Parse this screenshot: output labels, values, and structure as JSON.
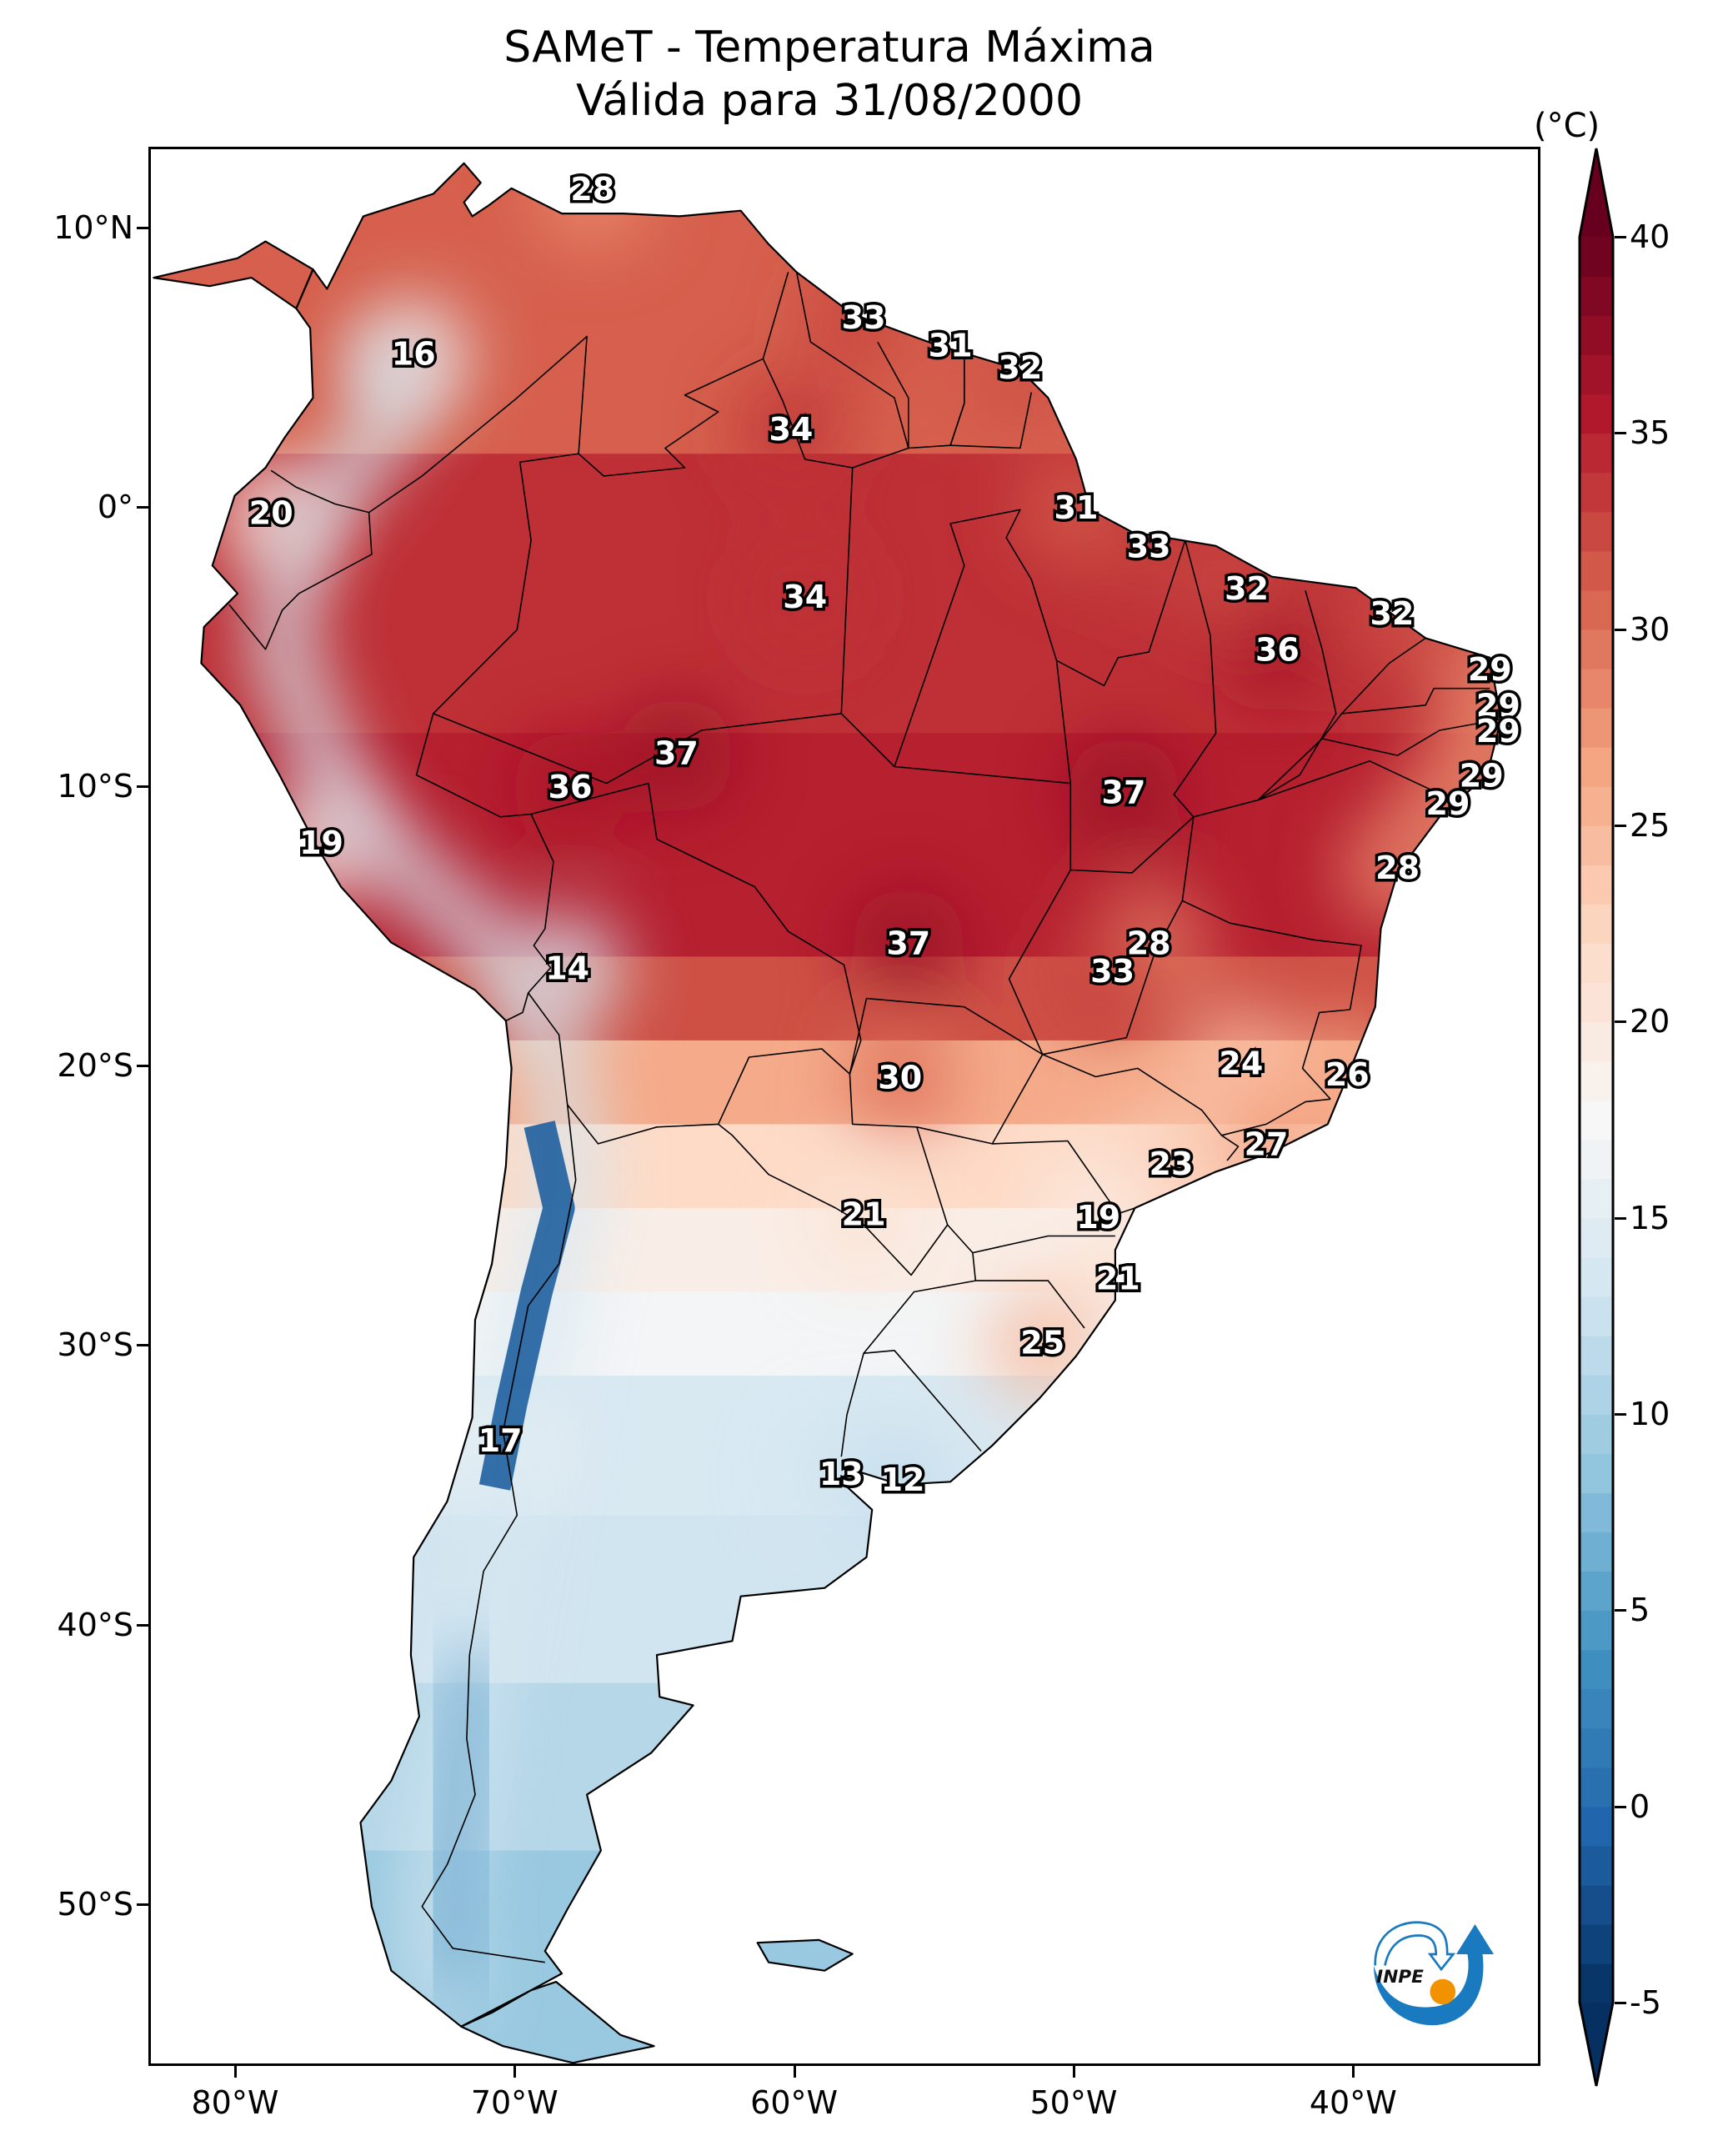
{
  "title_line1": "SAMeT - Temperatura Máxima",
  "title_line2": "Válida para 31/08/2000",
  "chart_data": {
    "type": "heatmap",
    "title": "SAMeT - Temperatura Máxima\nVálida para 31/08/2000",
    "variable": "Temperatura Máxima",
    "valid_date": "31/08/2000",
    "extent": {
      "lon": [
        -83.1,
        -33.3
      ],
      "lat": [
        -55.8,
        12.9
      ]
    },
    "x_ticks": [
      {
        "value": -80,
        "label": "80°W"
      },
      {
        "value": -70,
        "label": "70°W"
      },
      {
        "value": -60,
        "label": "60°W"
      },
      {
        "value": -50,
        "label": "50°W"
      },
      {
        "value": -40,
        "label": "40°W"
      }
    ],
    "y_ticks": [
      {
        "value": 10,
        "label": "10°N"
      },
      {
        "value": 0,
        "label": "0°"
      },
      {
        "value": -10,
        "label": "10°S"
      },
      {
        "value": -20,
        "label": "20°S"
      },
      {
        "value": -30,
        "label": "30°S"
      },
      {
        "value": -40,
        "label": "40°S"
      },
      {
        "value": -50,
        "label": "50°S"
      }
    ],
    "colorbar": {
      "unit": "(°C)",
      "cmap": "RdBu_r",
      "range": [
        -5,
        40
      ],
      "extend": "both",
      "ticks": [
        40,
        35,
        30,
        25,
        20,
        15,
        10,
        5,
        0,
        -5
      ],
      "tick_labels": [
        "40",
        "35",
        "30",
        "25",
        "20",
        "15",
        "10",
        "5",
        "0",
        "-5"
      ],
      "colors": [
        "#053061",
        "#2166ac",
        "#4393c3",
        "#92c5de",
        "#d1e5f0",
        "#f7f7f7",
        "#fddbc7",
        "#f4a582",
        "#d6604d",
        "#b2182b",
        "#67001f"
      ]
    },
    "station_values": [
      {
        "lon": -67.3,
        "lat": 11.4,
        "value": 28
      },
      {
        "lon": -73.7,
        "lat": 5.5,
        "value": 16
      },
      {
        "lon": -78.8,
        "lat": -0.2,
        "value": 20
      },
      {
        "lon": -57.6,
        "lat": 6.8,
        "value": 33
      },
      {
        "lon": -54.5,
        "lat": 5.8,
        "value": 31
      },
      {
        "lon": -52.0,
        "lat": 5.0,
        "value": 32
      },
      {
        "lon": -60.2,
        "lat": 2.8,
        "value": 34
      },
      {
        "lon": -50.0,
        "lat": 0.0,
        "value": 31
      },
      {
        "lon": -47.4,
        "lat": -1.4,
        "value": 33
      },
      {
        "lon": -43.9,
        "lat": -2.9,
        "value": 32
      },
      {
        "lon": -38.7,
        "lat": -3.8,
        "value": 32
      },
      {
        "lon": -59.7,
        "lat": -3.2,
        "value": 34
      },
      {
        "lon": -42.8,
        "lat": -5.1,
        "value": 36
      },
      {
        "lon": -35.2,
        "lat": -5.8,
        "value": 29
      },
      {
        "lon": -34.9,
        "lat": -7.1,
        "value": 29
      },
      {
        "lon": -34.9,
        "lat": -8.0,
        "value": 29
      },
      {
        "lon": -35.5,
        "lat": -9.6,
        "value": 29
      },
      {
        "lon": -36.7,
        "lat": -10.6,
        "value": 29
      },
      {
        "lon": -64.3,
        "lat": -8.8,
        "value": 37
      },
      {
        "lon": -68.1,
        "lat": -10.0,
        "value": 36
      },
      {
        "lon": -48.3,
        "lat": -10.2,
        "value": 37
      },
      {
        "lon": -77.0,
        "lat": -12.0,
        "value": 19
      },
      {
        "lon": -38.5,
        "lat": -12.9,
        "value": 28
      },
      {
        "lon": -56.0,
        "lat": -15.6,
        "value": 37
      },
      {
        "lon": -47.4,
        "lat": -15.6,
        "value": 28
      },
      {
        "lon": -48.7,
        "lat": -16.6,
        "value": 33
      },
      {
        "lon": -68.2,
        "lat": -16.5,
        "value": 14
      },
      {
        "lon": -44.1,
        "lat": -19.9,
        "value": 24
      },
      {
        "lon": -40.3,
        "lat": -20.3,
        "value": 26
      },
      {
        "lon": -56.3,
        "lat": -20.4,
        "value": 30
      },
      {
        "lon": -43.2,
        "lat": -22.8,
        "value": 27
      },
      {
        "lon": -46.6,
        "lat": -23.5,
        "value": 23
      },
      {
        "lon": -57.6,
        "lat": -25.3,
        "value": 21
      },
      {
        "lon": -49.2,
        "lat": -25.4,
        "value": 19
      },
      {
        "lon": -48.5,
        "lat": -27.6,
        "value": 21
      },
      {
        "lon": -51.2,
        "lat": -29.9,
        "value": 25
      },
      {
        "lon": -70.6,
        "lat": -33.4,
        "value": 17
      },
      {
        "lon": -58.4,
        "lat": -34.6,
        "value": 13
      },
      {
        "lon": -56.2,
        "lat": -34.8,
        "value": 12
      }
    ]
  },
  "logo": {
    "text": "INPE",
    "arrow_color": "#1a7abf",
    "dot_color": "#f39200"
  }
}
